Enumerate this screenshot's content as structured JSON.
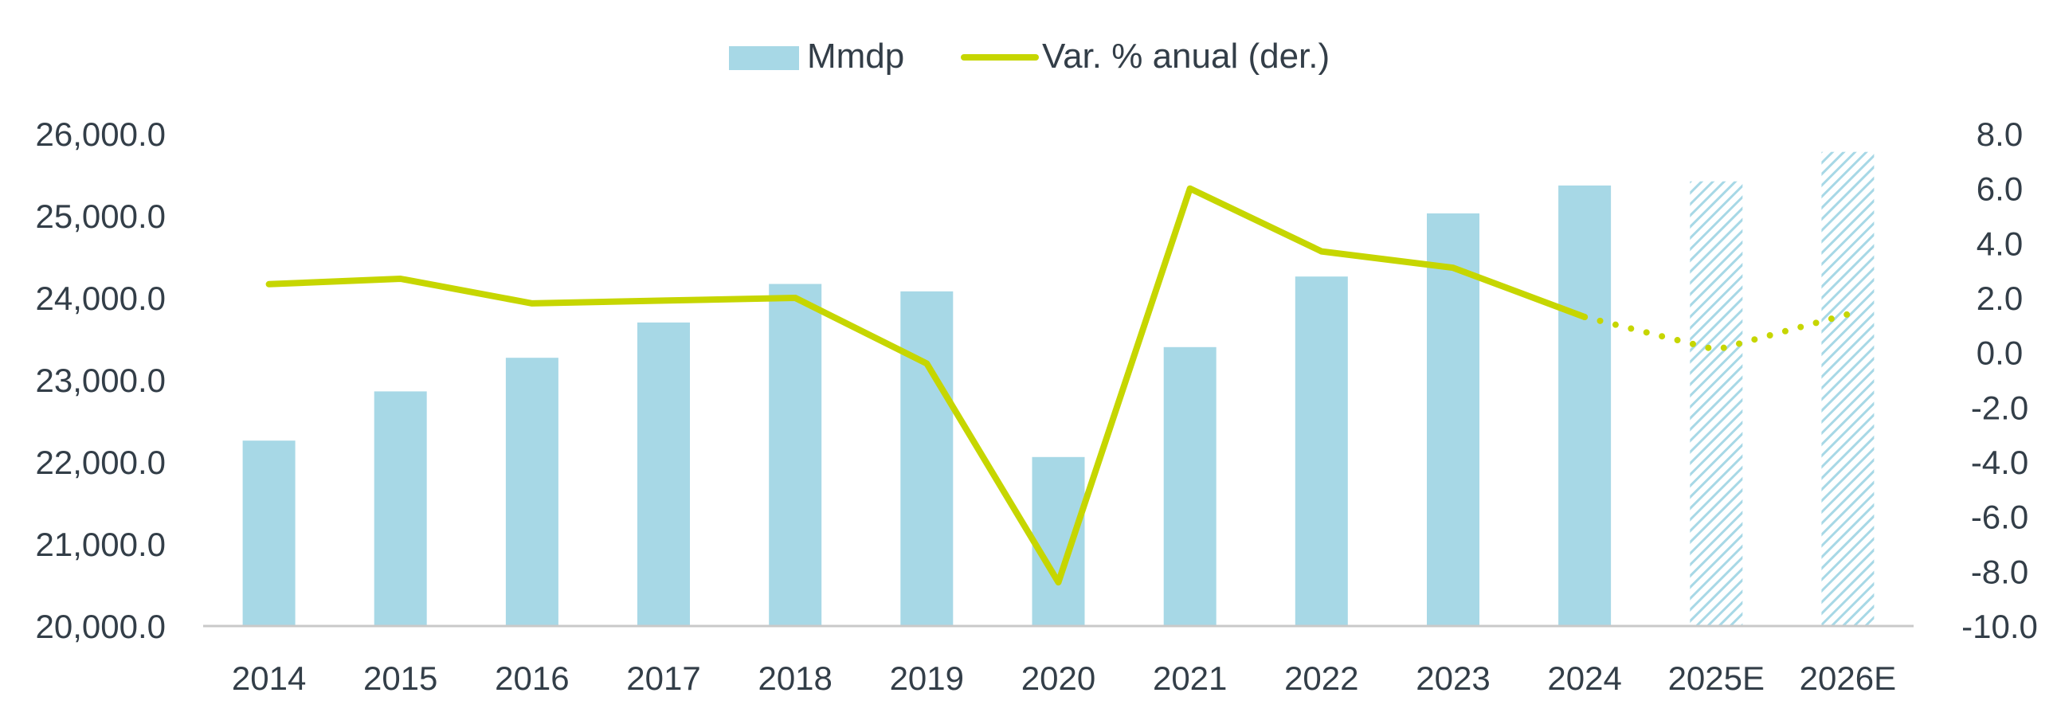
{
  "legend": {
    "bar_label": "Mmdp",
    "line_label": "Var. % anual (der.)"
  },
  "colors": {
    "bar": "#a7d8e6",
    "line": "#c6d600",
    "axis": "#c9c9c9",
    "text": "#333e48"
  },
  "chart_data": {
    "type": "bar",
    "categories": [
      "2014",
      "2015",
      "2016",
      "2017",
      "2018",
      "2019",
      "2020",
      "2021",
      "2022",
      "2023",
      "2024",
      "2025E",
      "2026E"
    ],
    "estimate_categories": [
      "2025E",
      "2026E"
    ],
    "series": [
      {
        "name": "Mmdp",
        "type": "bar",
        "axis": "left",
        "values": [
          22260,
          22860,
          23270,
          23700,
          24170,
          24080,
          22060,
          23400,
          24260,
          25030,
          25370,
          25420,
          25780
        ]
      },
      {
        "name": "Var. % anual (der.)",
        "type": "line",
        "axis": "right",
        "values": [
          2.5,
          2.7,
          1.8,
          1.9,
          2.0,
          -0.4,
          -8.4,
          6.0,
          3.7,
          3.1,
          1.3,
          0.1,
          1.4
        ]
      }
    ],
    "y_left": {
      "ylim": [
        20000,
        26000
      ],
      "ticks": [
        "20,000.0",
        "21,000.0",
        "22,000.0",
        "23,000.0",
        "24,000.0",
        "25,000.0",
        "26,000.0"
      ]
    },
    "y_right": {
      "ylim": [
        -10,
        8
      ],
      "ticks": [
        "-10.0",
        "-8.0",
        "-6.0",
        "-4.0",
        "-2.0",
        "0.0",
        "2.0",
        "4.0",
        "6.0",
        "8.0"
      ]
    },
    "legend_position": "top-center",
    "grid": false,
    "title": "",
    "xlabel": "",
    "ylabel": ""
  }
}
